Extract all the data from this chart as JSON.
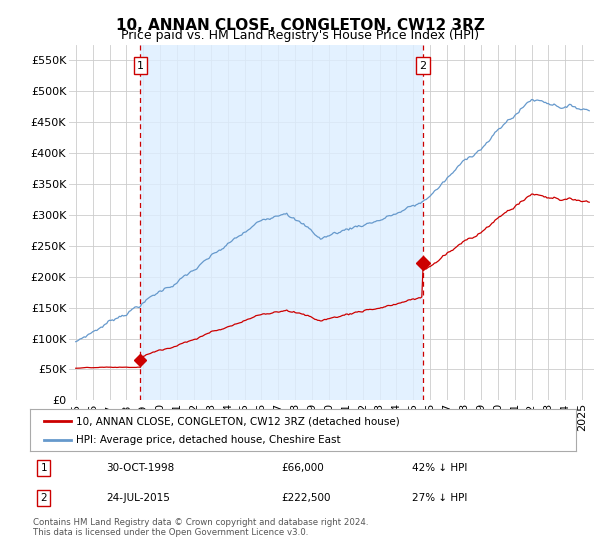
{
  "title": "10, ANNAN CLOSE, CONGLETON, CW12 3RZ",
  "subtitle": "Price paid vs. HM Land Registry's House Price Index (HPI)",
  "ylim": [
    0,
    575000
  ],
  "yticks": [
    0,
    50000,
    100000,
    150000,
    200000,
    250000,
    300000,
    350000,
    400000,
    450000,
    500000,
    550000
  ],
  "ytick_labels": [
    "£0",
    "£50K",
    "£100K",
    "£150K",
    "£200K",
    "£250K",
    "£300K",
    "£350K",
    "£400K",
    "£450K",
    "£500K",
    "£550K"
  ],
  "sale1_year": 1998.83,
  "sale1_price": 66000,
  "sale1_label": "30-OCT-1998",
  "sale1_amount": "£66,000",
  "sale1_hpi": "42% ↓ HPI",
  "sale2_year": 2015.55,
  "sale2_price": 222500,
  "sale2_label": "24-JUL-2015",
  "sale2_amount": "£222,500",
  "sale2_hpi": "27% ↓ HPI",
  "hpi_color": "#6699cc",
  "hpi_fill_color": "#ddeeff",
  "sale_color": "#cc0000",
  "background_color": "#ffffff",
  "grid_color": "#cccccc",
  "legend_sale_label": "10, ANNAN CLOSE, CONGLETON, CW12 3RZ (detached house)",
  "legend_hpi_label": "HPI: Average price, detached house, Cheshire East",
  "footer": "Contains HM Land Registry data © Crown copyright and database right 2024.\nThis data is licensed under the Open Government Licence v3.0.",
  "title_fontsize": 11,
  "subtitle_fontsize": 9,
  "tick_fontsize": 8
}
